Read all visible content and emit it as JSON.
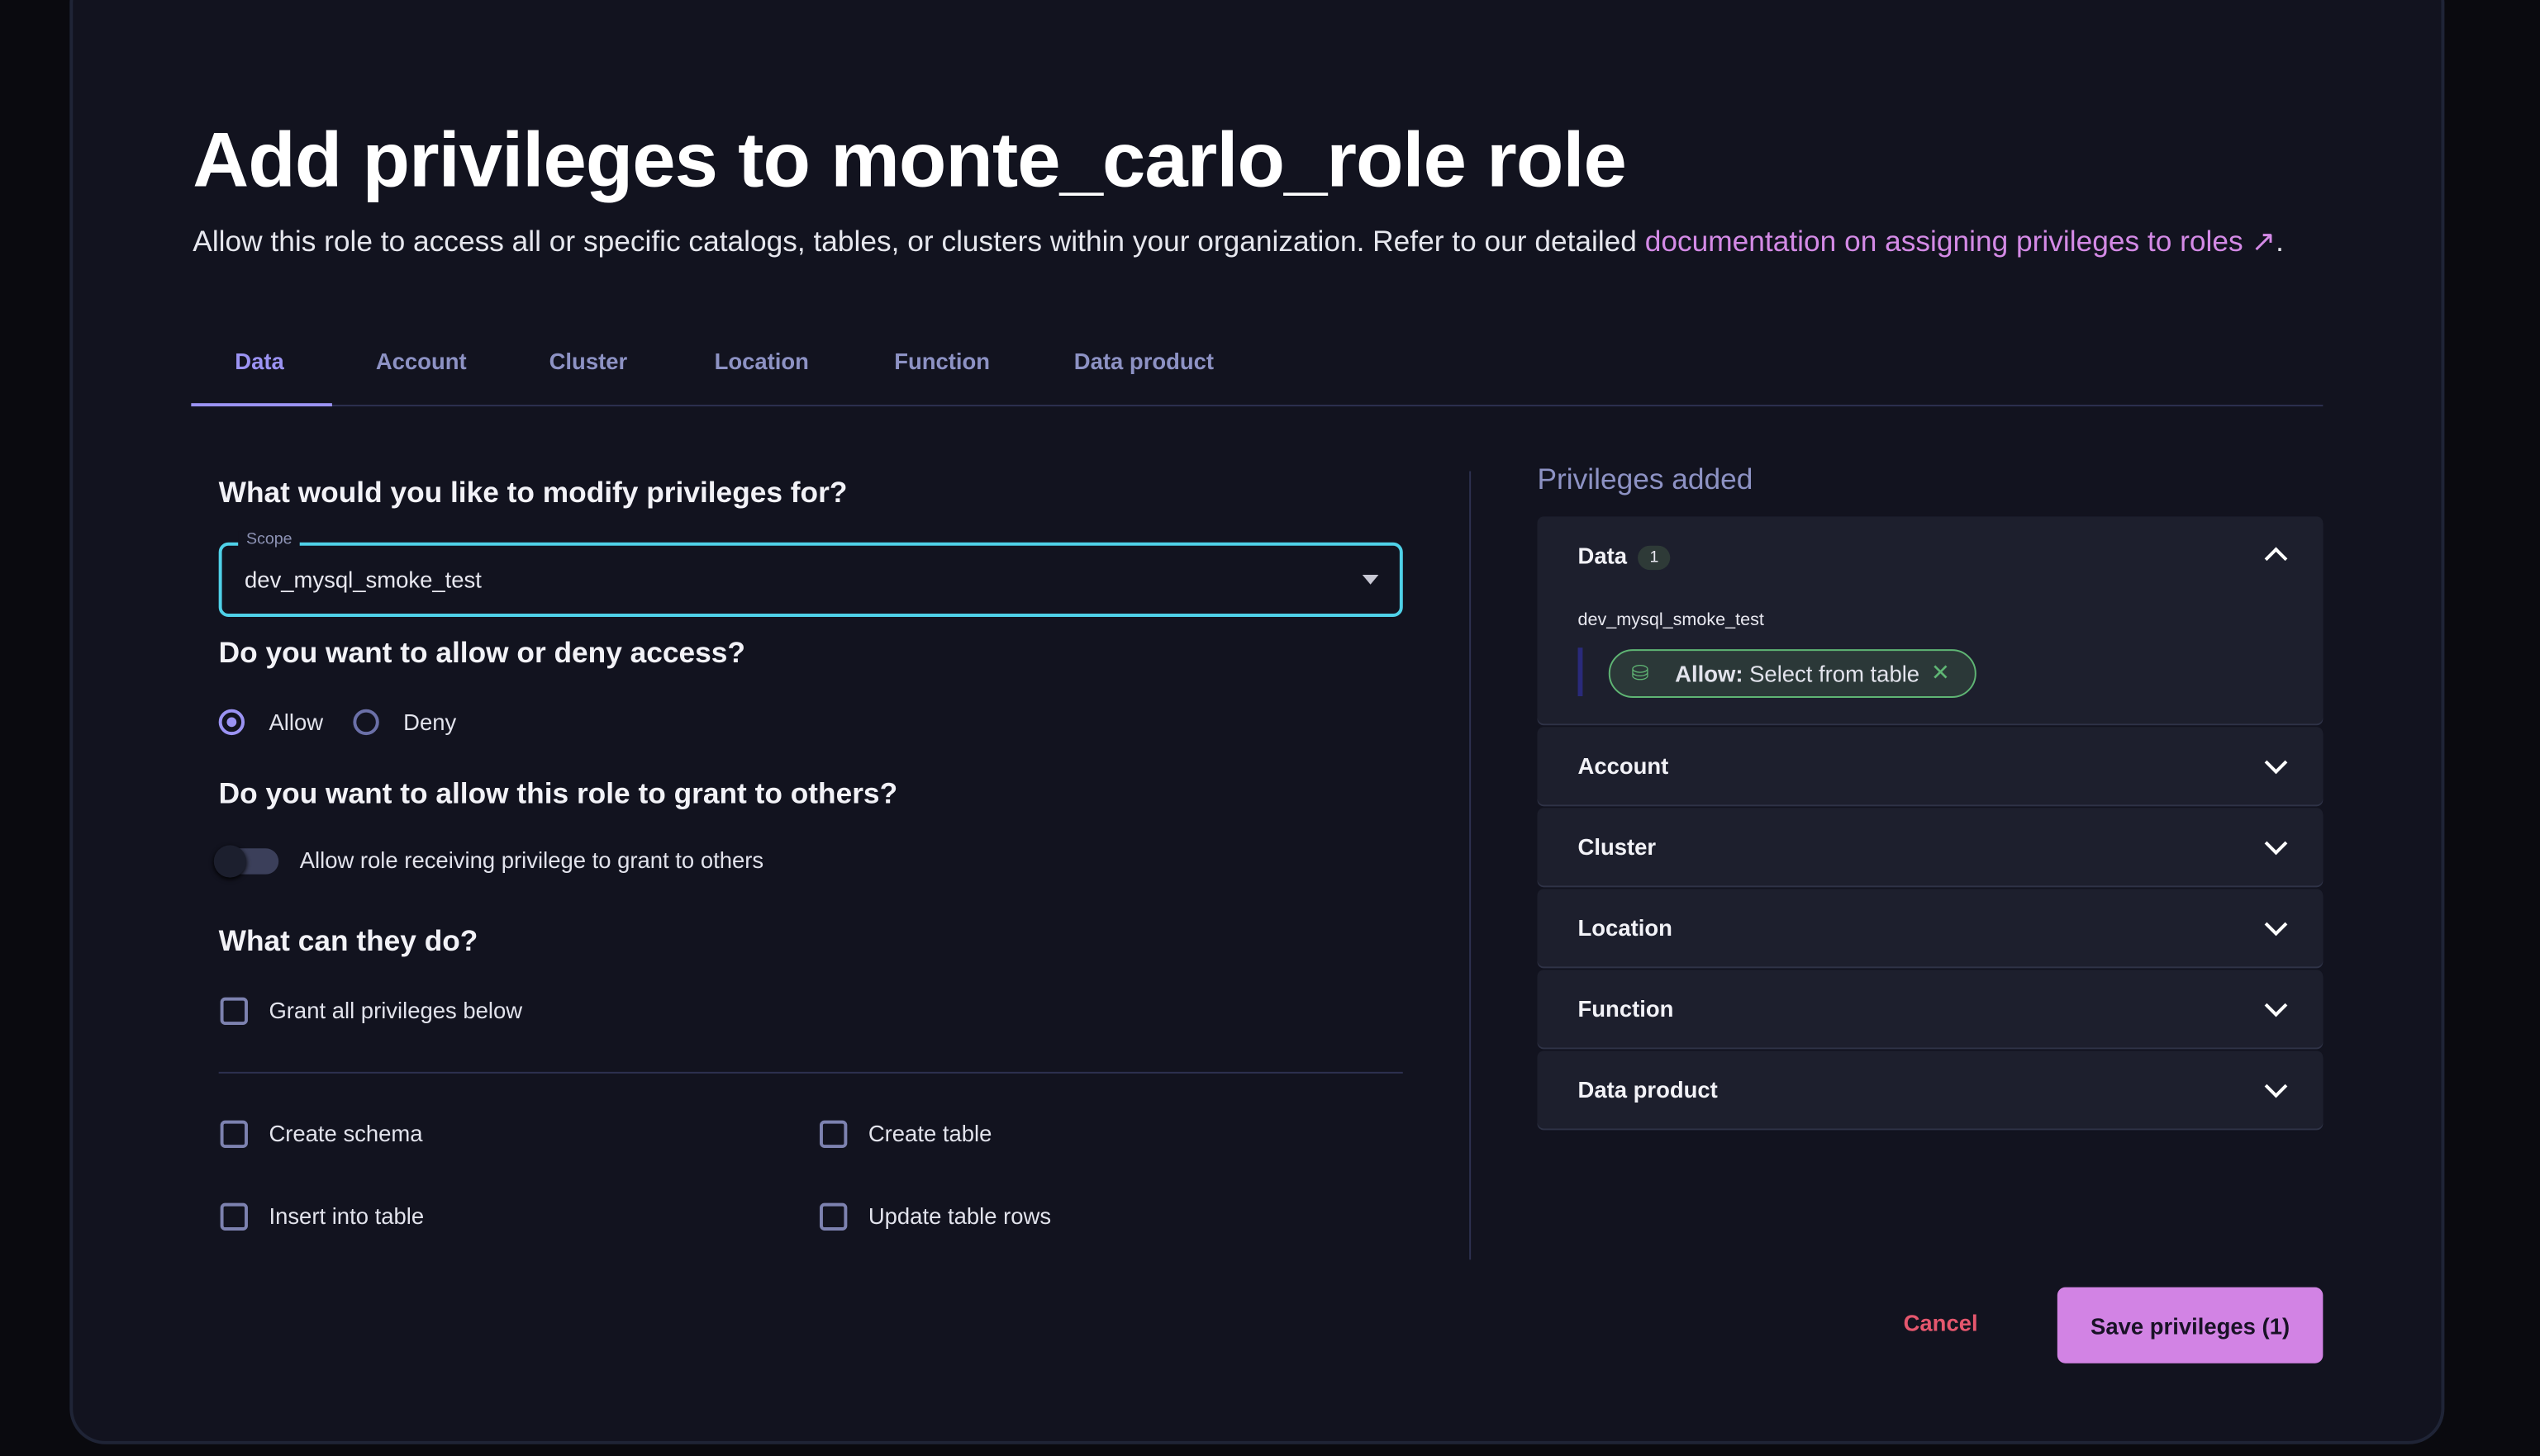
{
  "title": "Add privileges to monte_carlo_role role",
  "subtitle": {
    "text": "Allow this role to access all or specific catalogs, tables, or clusters within your organization. Refer to our detailed ",
    "link": "documentation on assigning privileges to roles",
    "end": "."
  },
  "tabs": [
    {
      "label": "Data",
      "active": true
    },
    {
      "label": "Account"
    },
    {
      "label": "Cluster"
    },
    {
      "label": "Location"
    },
    {
      "label": "Function"
    },
    {
      "label": "Data product"
    }
  ],
  "form": {
    "q1": "What would you like to modify privileges for?",
    "scope_label": "Scope",
    "scope_value": "dev_mysql_smoke_test",
    "q2": "Do you want to allow or deny access?",
    "allow": "Allow",
    "deny": "Deny",
    "selected_access": "Allow",
    "q3": "Do you want to allow this role to grant to others?",
    "grant_toggle_label": "Allow role receiving privilege to grant to others",
    "grant_toggle_on": false,
    "q4": "What can they do?",
    "grant_all": "Grant all privileges below",
    "privileges": [
      "Create schema",
      "Create table",
      "Insert into table",
      "Update table rows"
    ]
  },
  "panel": {
    "title": "Privileges added",
    "sections": [
      {
        "label": "Data",
        "count": "1",
        "expanded": true
      },
      {
        "label": "Account"
      },
      {
        "label": "Cluster"
      },
      {
        "label": "Location"
      },
      {
        "label": "Function"
      },
      {
        "label": "Data product"
      }
    ],
    "data_scope": "dev_mysql_smoke_test",
    "chip_prefix": "Allow:",
    "chip_text": "Select from table"
  },
  "footer": {
    "cancel": "Cancel",
    "save": "Save privileges (1)"
  },
  "colors": {
    "accent": "#9b93f3",
    "link": "#d48ae6",
    "save": "#d283e4",
    "cancel": "#e5576e",
    "scope_border": "#4fd1e8",
    "chip": "#5fb574"
  }
}
